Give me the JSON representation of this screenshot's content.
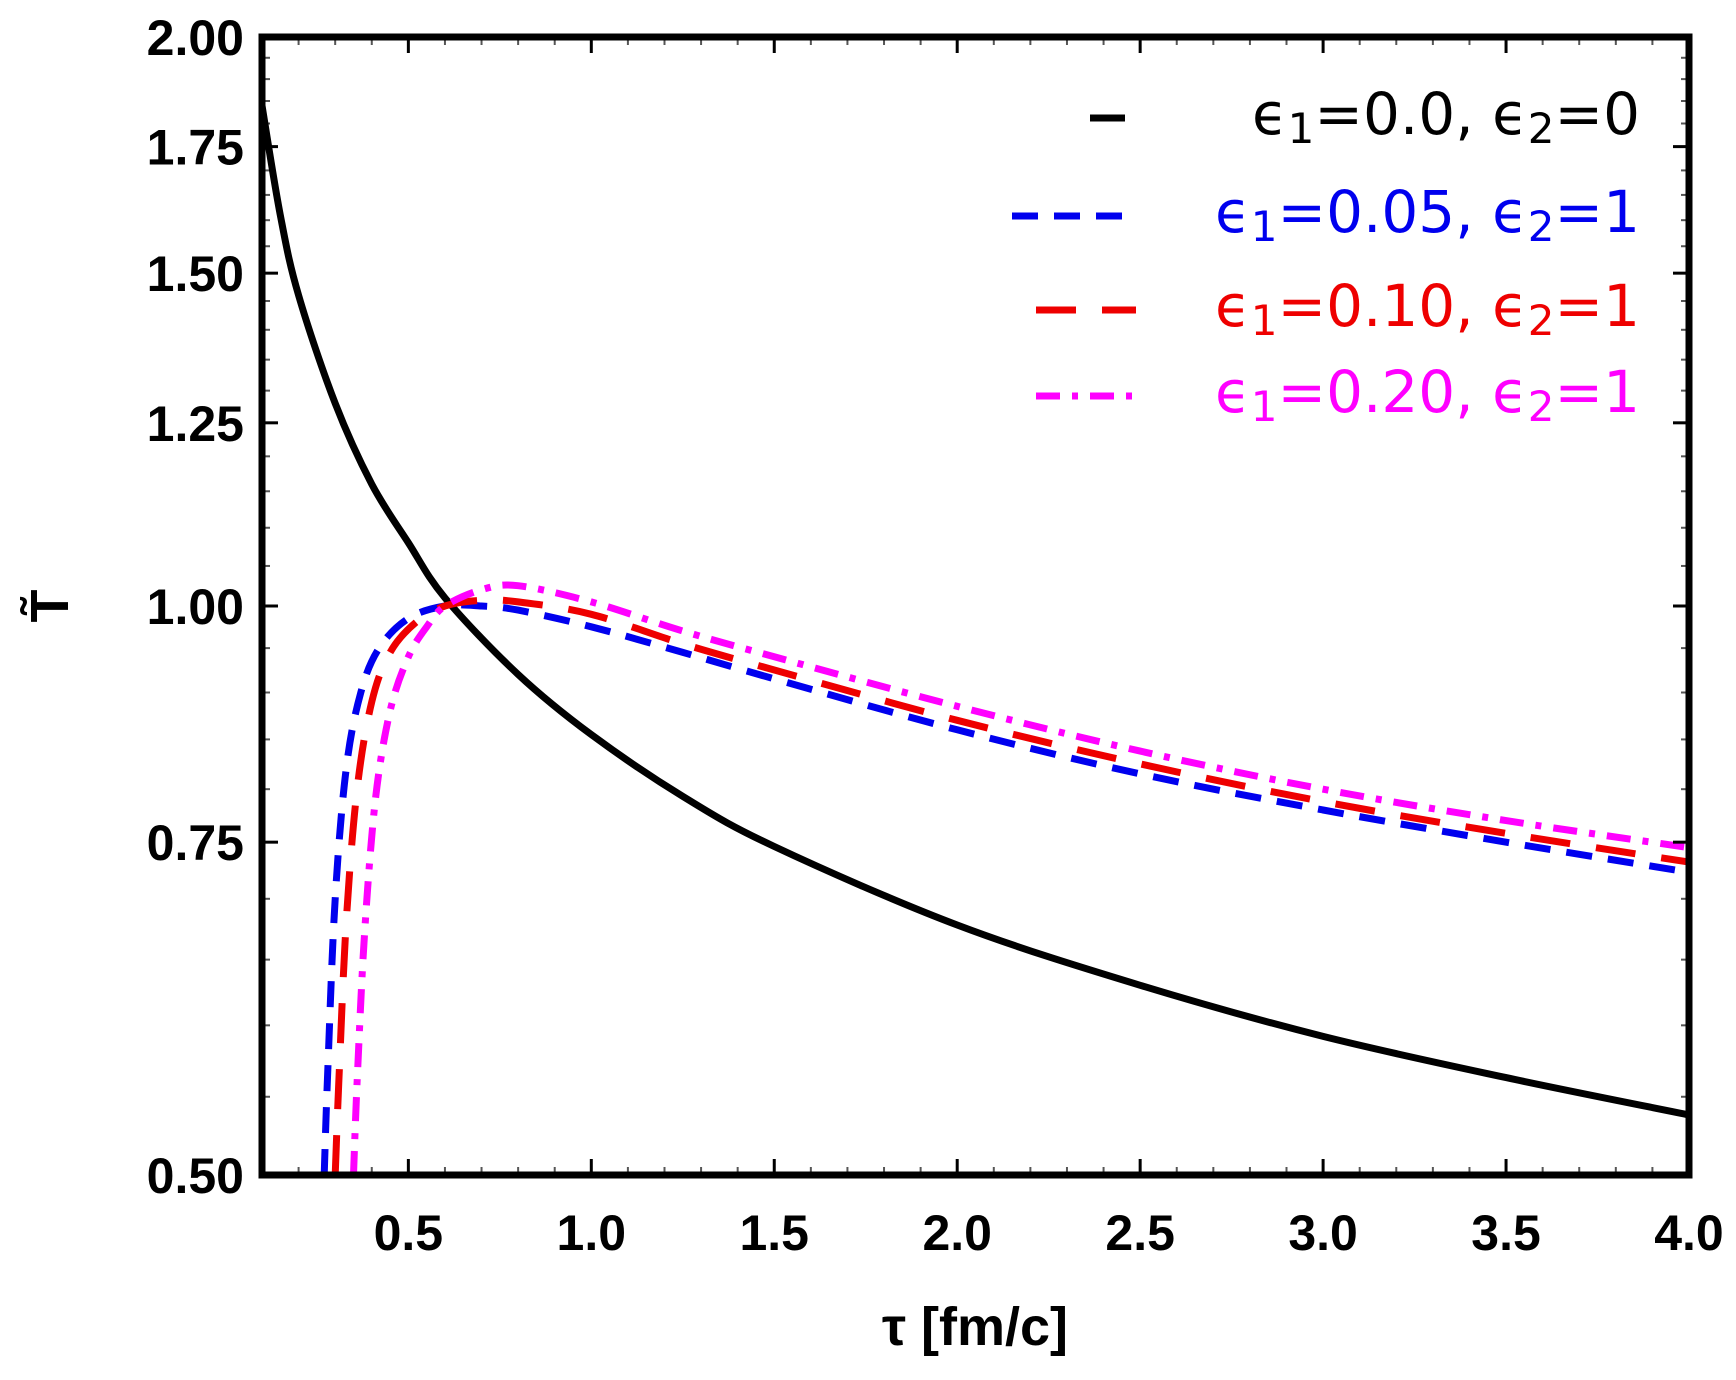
{
  "chart_data": {
    "type": "line",
    "xlabel": "τ [fm/c]",
    "ylabel": "T̃",
    "xlim": [
      0.1,
      4.0
    ],
    "ylim": [
      0.5,
      2.0
    ],
    "y_scale": "log",
    "x_ticks": [
      "0.5",
      "1.0",
      "1.5",
      "2.0",
      "2.5",
      "3.0",
      "3.5",
      "4.0"
    ],
    "y_ticks": [
      "0.50",
      "0.75",
      "1.00",
      "1.25",
      "1.50",
      "1.75",
      "2.00"
    ],
    "grid": false,
    "legend_position": "top-right",
    "series": [
      {
        "name": "ϵ1=0.0, ϵ2=0",
        "legend_main": "ϵ",
        "legend_sub1": "1",
        "legend_mid": "=0.0, ϵ",
        "legend_sub2": "2",
        "legend_end": "=0",
        "color": "#000000",
        "style": "solid",
        "x": [
          0.1,
          0.15,
          0.2,
          0.3,
          0.4,
          0.5,
          0.6,
          0.8,
          1.0,
          1.25,
          1.5,
          2.0,
          2.5,
          3.0,
          3.5,
          4.0
        ],
        "y": [
          1.84,
          1.61,
          1.46,
          1.28,
          1.16,
          1.08,
          1.01,
          0.92,
          0.855,
          0.793,
          0.746,
          0.678,
          0.63,
          0.592,
          0.563,
          0.538
        ]
      },
      {
        "name": "ϵ1=0.05, ϵ2=1",
        "legend_main": "ϵ",
        "legend_sub1": "1",
        "legend_mid": "=0.05, ϵ",
        "legend_sub2": "2",
        "legend_end": "=1",
        "color": "#0000ee",
        "style": "dashed",
        "x": [
          0.27,
          0.28,
          0.3,
          0.33,
          0.37,
          0.42,
          0.5,
          0.6,
          0.7,
          0.8,
          1.0,
          1.25,
          1.5,
          2.0,
          2.5,
          3.0,
          3.5,
          4.0
        ],
        "y": [
          0.5,
          0.57,
          0.7,
          0.82,
          0.9,
          0.95,
          0.985,
          1.0,
          1.0,
          0.995,
          0.975,
          0.945,
          0.915,
          0.86,
          0.815,
          0.78,
          0.75,
          0.723
        ]
      },
      {
        "name": "ϵ1=0.10, ϵ2=1",
        "legend_main": "ϵ",
        "legend_sub1": "1",
        "legend_mid": "=0.10, ϵ",
        "legend_sub2": "2",
        "legend_end": "=1",
        "color": "#ee0000",
        "style": "long-dashed",
        "x": [
          0.3,
          0.31,
          0.33,
          0.36,
          0.4,
          0.45,
          0.52,
          0.6,
          0.7,
          0.8,
          1.0,
          1.25,
          1.5,
          2.0,
          2.5,
          3.0,
          3.5,
          4.0
        ],
        "y": [
          0.5,
          0.56,
          0.68,
          0.8,
          0.89,
          0.945,
          0.98,
          1.0,
          1.007,
          1.005,
          0.99,
          0.955,
          0.925,
          0.87,
          0.825,
          0.788,
          0.758,
          0.732
        ]
      },
      {
        "name": "ϵ1=0.20, ϵ2=1",
        "legend_main": "ϵ",
        "legend_sub1": "1",
        "legend_mid": "=0.20, ϵ",
        "legend_sub2": "2",
        "legend_end": "=1",
        "color": "#ff00ff",
        "style": "dash-dot",
        "x": [
          0.35,
          0.36,
          0.38,
          0.41,
          0.45,
          0.5,
          0.55,
          0.6,
          0.7,
          0.8,
          1.0,
          1.25,
          1.5,
          2.0,
          2.5,
          3.0,
          3.5,
          4.0
        ],
        "y": [
          0.5,
          0.56,
          0.67,
          0.79,
          0.88,
          0.94,
          0.975,
          1.0,
          1.02,
          1.025,
          1.005,
          0.97,
          0.94,
          0.885,
          0.838,
          0.8,
          0.77,
          0.745
        ]
      }
    ]
  }
}
